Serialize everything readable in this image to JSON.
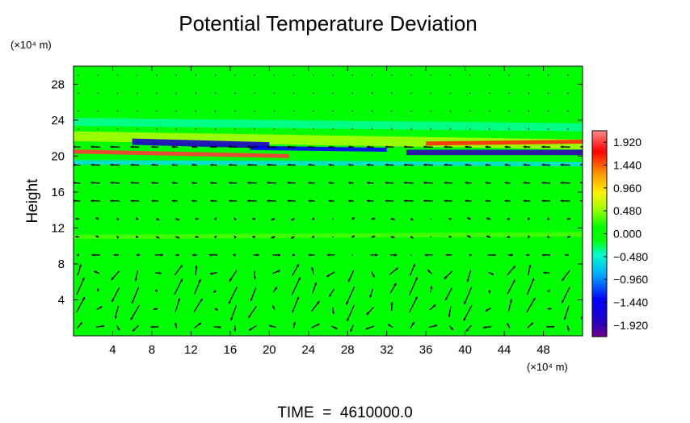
{
  "chart_data": {
    "type": "heatmap",
    "title": "Potential Temperature Deviation",
    "ylabel": "Height",
    "xunit_label": "(×10⁴ m)",
    "yunit_label": "(×10⁴ m)",
    "footer": "TIME  =  4610000.0",
    "xlim": [
      0,
      52
    ],
    "ylim": [
      0,
      30
    ],
    "x_ticks": [
      4,
      8,
      12,
      16,
      20,
      24,
      28,
      32,
      36,
      40,
      44,
      48
    ],
    "y_ticks": [
      4,
      8,
      12,
      16,
      20,
      24,
      28
    ],
    "colorbar": {
      "range": [
        -2.16,
        2.16
      ],
      "ticks": [
        {
          "value": 1.92,
          "label": "1.920"
        },
        {
          "value": 1.44,
          "label": "1.440"
        },
        {
          "value": 0.96,
          "label": "0.960"
        },
        {
          "value": 0.48,
          "label": "0.480"
        },
        {
          "value": 0.0,
          "label": "0.000"
        },
        {
          "value": -0.48,
          "label": "−0.480"
        },
        {
          "value": -0.96,
          "label": "−0.960"
        },
        {
          "value": -1.44,
          "label": "−1.440"
        },
        {
          "value": -1.92,
          "label": "−1.920"
        }
      ]
    },
    "background_value": 0.0,
    "colors": {
      "field_background": "#00ff00",
      "vector": "#000000"
    },
    "bands": [
      {
        "x0": 0,
        "x1": 52,
        "y_left": 22.2,
        "y_right": 21.3,
        "thickness": 1.1,
        "value": 0.55
      },
      {
        "x0": 6,
        "x1": 20,
        "y_left": 21.6,
        "y_right": 21.2,
        "thickness": 0.7,
        "value": -1.8
      },
      {
        "x0": 18,
        "x1": 32,
        "y_left": 20.9,
        "y_right": 20.7,
        "thickness": 0.45,
        "value": -1.4
      },
      {
        "x0": 34,
        "x1": 52,
        "y_left": 20.4,
        "y_right": 20.4,
        "thickness": 0.6,
        "value": -1.9
      },
      {
        "x0": 0,
        "x1": 22,
        "y_left": 20.5,
        "y_right": 20.0,
        "thickness": 0.45,
        "value": 1.9
      },
      {
        "x0": 36,
        "x1": 52,
        "y_left": 21.4,
        "y_right": 21.6,
        "thickness": 0.45,
        "value": 1.6
      },
      {
        "x0": 0,
        "x1": 52,
        "y_left": 19.3,
        "y_right": 19.1,
        "thickness": 0.5,
        "value": -0.6
      },
      {
        "x0": 0,
        "x1": 52,
        "y_left": 11.0,
        "y_right": 11.3,
        "thickness": 0.5,
        "value": 0.3
      },
      {
        "x0": 0,
        "x1": 52,
        "y_left": 23.8,
        "y_right": 23.2,
        "thickness": 0.9,
        "value": -0.35
      }
    ]
  }
}
